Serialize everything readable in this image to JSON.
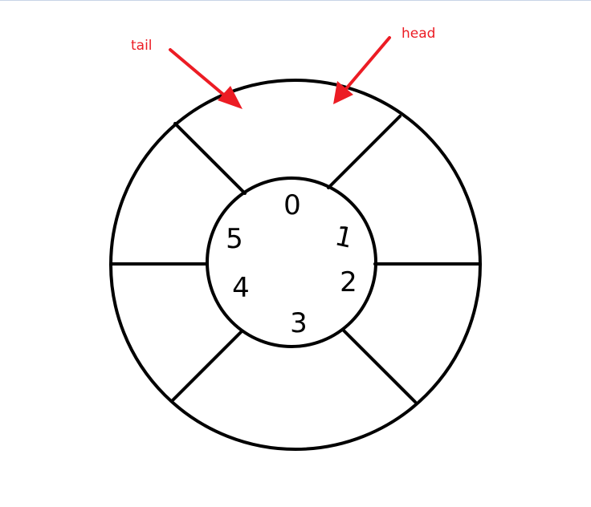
{
  "colors": {
    "stroke": "#000000",
    "pointer": "#ec1c24",
    "background": "#ffffff"
  },
  "pointers": {
    "tail": {
      "label": "tail"
    },
    "head": {
      "label": "head"
    }
  },
  "slots": [
    "0",
    "1",
    "2",
    "3",
    "4",
    "5"
  ]
}
